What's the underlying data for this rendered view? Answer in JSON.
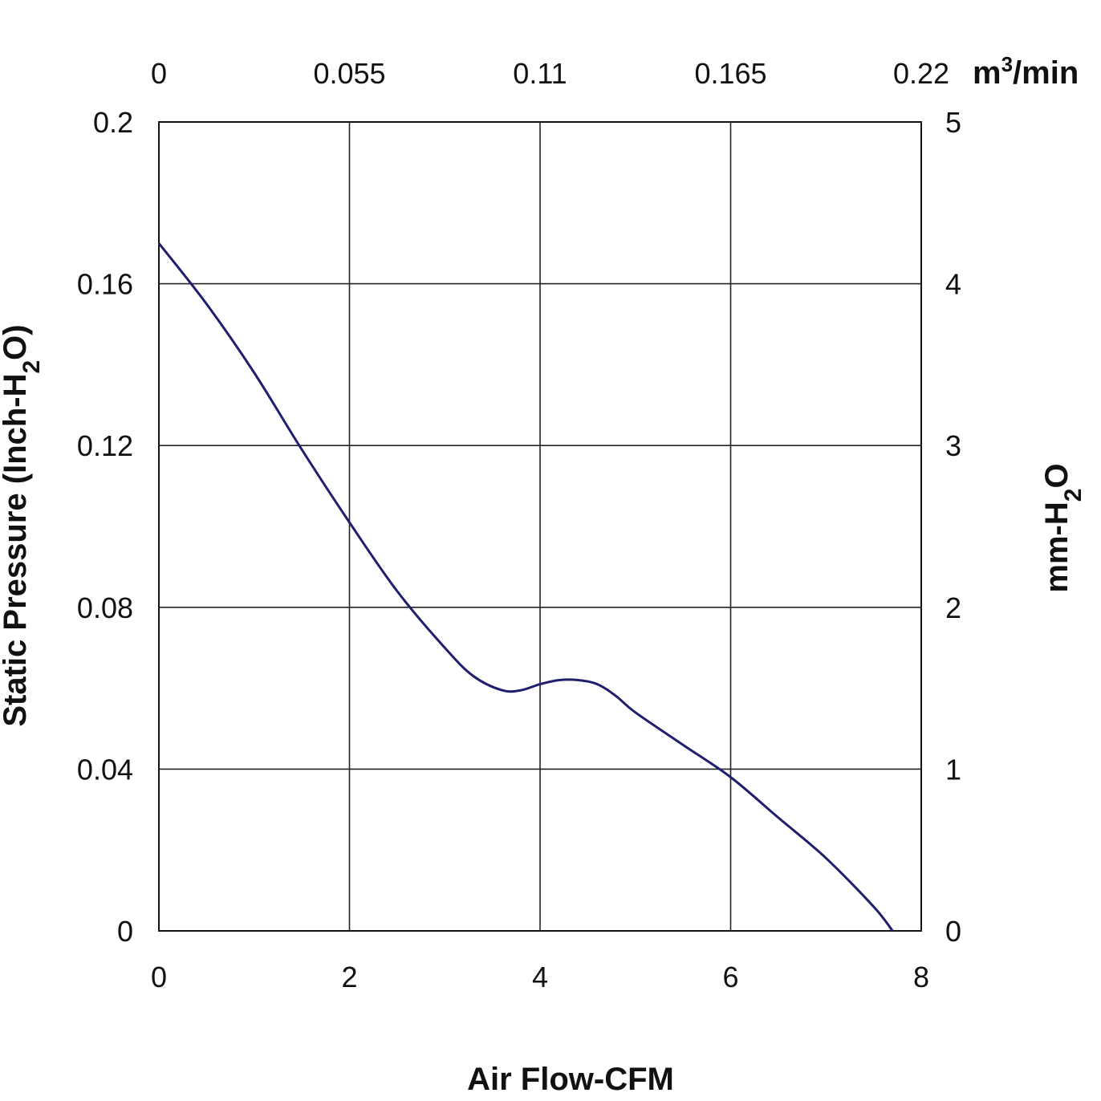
{
  "chart_data": {
    "type": "line",
    "xlabel": "Air Flow-CFM",
    "ylabel_left": {
      "main": "Static Pressure (Inch-H",
      "sub": "2",
      "end": "O)"
    },
    "ylabel_right": {
      "main": "mm-H",
      "sub": "2",
      "end": "O"
    },
    "x_top_unit": {
      "main": "m",
      "sup": "3",
      "end": "/min"
    },
    "xlim": [
      0,
      8
    ],
    "ylim": [
      0,
      0.2
    ],
    "y_right_lim": [
      0,
      5
    ],
    "x_top_lim": [
      0,
      0.22
    ],
    "x_ticks": [
      "0",
      "2",
      "4",
      "6",
      "8"
    ],
    "x_top_ticks": [
      "0",
      "0.055",
      "0.11",
      "0.165",
      "0.22"
    ],
    "y_ticks": [
      "0",
      "0.04",
      "0.08",
      "0.12",
      "0.16",
      "0.2"
    ],
    "y_right_ticks": [
      "0",
      "1",
      "2",
      "3",
      "4",
      "5"
    ],
    "grid": true,
    "series": [
      {
        "color": "#1f1f6e",
        "x": [
          0,
          0.5,
          1.0,
          1.5,
          2.0,
          2.5,
          3.0,
          3.3,
          3.6,
          3.8,
          4.0,
          4.2,
          4.4,
          4.6,
          4.8,
          5.0,
          5.5,
          6.0,
          6.5,
          7.0,
          7.5,
          7.7
        ],
        "y": [
          0.17,
          0.155,
          0.138,
          0.119,
          0.101,
          0.084,
          0.07,
          0.063,
          0.0595,
          0.0595,
          0.061,
          0.062,
          0.062,
          0.061,
          0.058,
          0.054,
          0.046,
          0.038,
          0.028,
          0.018,
          0.006,
          0.0
        ]
      }
    ]
  }
}
